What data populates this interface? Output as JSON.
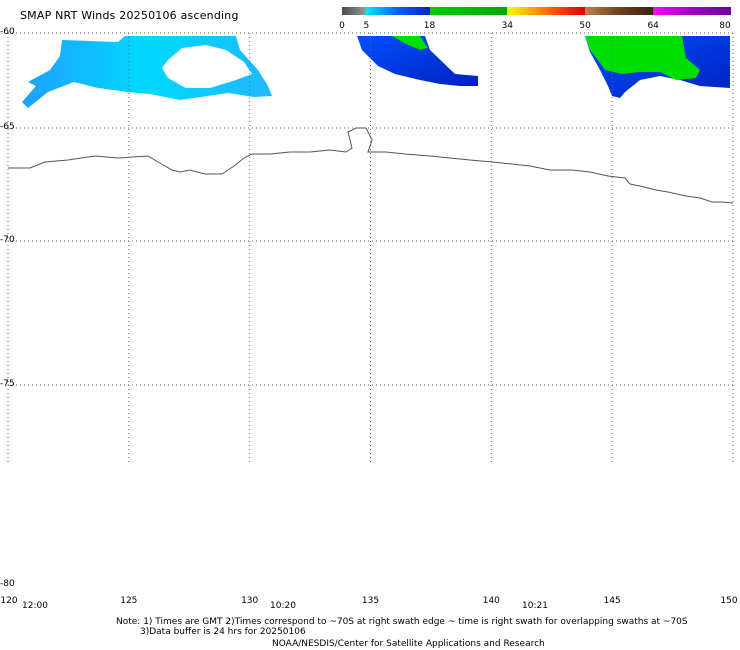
{
  "title": "SMAP NRT Winds 20250106 ascending",
  "colorbar": {
    "labels": [
      "0",
      "5",
      "18",
      "34",
      "50",
      "64",
      "80"
    ],
    "segments": [
      {
        "from": 0,
        "to": 5,
        "colors": [
          "#4a4a4a",
          "#9a9a9a"
        ]
      },
      {
        "from": 5,
        "to": 18,
        "colors": [
          "#00e8ff",
          "#0060ff",
          "#0022cc"
        ]
      },
      {
        "from": 18,
        "to": 34,
        "colors": [
          "#00cc00",
          "#00a800"
        ]
      },
      {
        "from": 34,
        "to": 50,
        "colors": [
          "#ffff00",
          "#ffa000",
          "#ff4000",
          "#e00000"
        ]
      },
      {
        "from": 50,
        "to": 64,
        "colors": [
          "#c08050",
          "#704020",
          "#3a2010"
        ]
      },
      {
        "from": 64,
        "to": 80,
        "colors": [
          "#ff00ff",
          "#a000c0",
          "#7000a0"
        ]
      }
    ]
  },
  "map": {
    "lon_min": 120,
    "lon_max": 150,
    "lat_top": -60,
    "lat_bottom": -80,
    "lat_ticks": [
      "-60",
      "-65",
      "-70",
      "-75",
      "-80"
    ],
    "lon_ticks": [
      "120",
      "125",
      "130",
      "135",
      "140",
      "145",
      "150"
    ]
  },
  "times": [
    "12:00",
    "10:20",
    "10:21"
  ],
  "notes": {
    "line1": "Note: 1) Times are GMT 2)Times correspond to ~70S at right swath edge ~ time is right swath for overlapping swaths at ~70S",
    "line2": "3)Data buffer is 24 hrs for 20250106",
    "line3": "NOAA/NESDIS/Center for Satellite Applications and Research"
  },
  "colors": {
    "light_wind": "#00ccff",
    "mid_wind": "#0044ee",
    "gale": "#00dd00",
    "coastline": "#555555"
  }
}
